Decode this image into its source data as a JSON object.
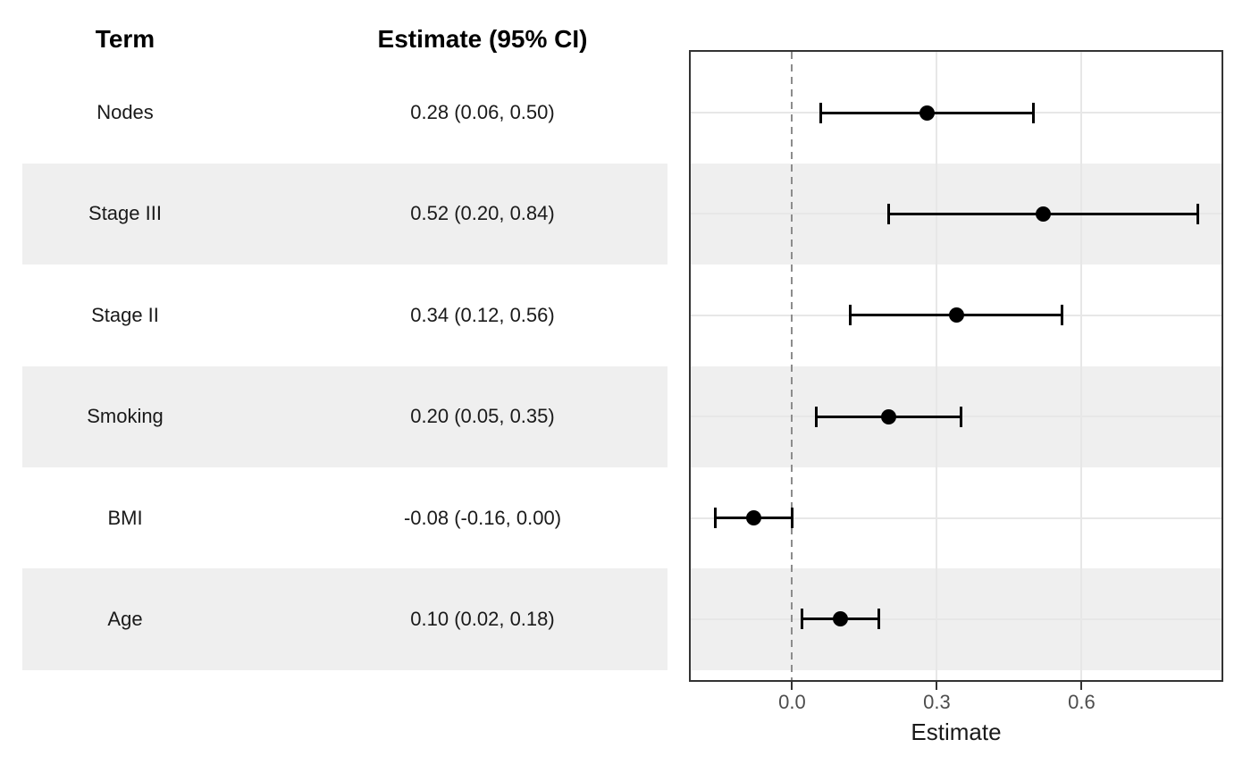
{
  "table": {
    "header_term": "Term",
    "header_estimate": "Estimate (95% CI)",
    "rows": [
      {
        "term": "Nodes",
        "estimate_label": "0.28 (0.06, 0.50)"
      },
      {
        "term": "Stage III",
        "estimate_label": "0.52 (0.20, 0.84)"
      },
      {
        "term": "Stage II",
        "estimate_label": "0.34 (0.12, 0.56)"
      },
      {
        "term": "Smoking",
        "estimate_label": "0.20 (0.05, 0.35)"
      },
      {
        "term": "BMI",
        "estimate_label": "-0.08 (-0.16, 0.00)"
      },
      {
        "term": "Age",
        "estimate_label": "0.10 (0.02, 0.18)"
      }
    ]
  },
  "chart_data": {
    "type": "scatter",
    "variant": "forest-plot",
    "title": "",
    "xlabel": "Estimate",
    "ylabel": "",
    "x_tick_labels": [
      "0.0",
      "0.3",
      "0.6"
    ],
    "x_tick_values": [
      0.0,
      0.3,
      0.6
    ],
    "xlim": [
      -0.21,
      0.89
    ],
    "reference_line_x": 0,
    "grid": "major",
    "legend": "none",
    "series": [
      {
        "name": "Nodes",
        "estimate": 0.28,
        "ci_low": 0.06,
        "ci_high": 0.5
      },
      {
        "name": "Stage III",
        "estimate": 0.52,
        "ci_low": 0.2,
        "ci_high": 0.84
      },
      {
        "name": "Stage II",
        "estimate": 0.34,
        "ci_low": 0.12,
        "ci_high": 0.56
      },
      {
        "name": "Smoking",
        "estimate": 0.2,
        "ci_low": 0.05,
        "ci_high": 0.35
      },
      {
        "name": "BMI",
        "estimate": -0.08,
        "ci_low": -0.16,
        "ci_high": 0.0
      },
      {
        "name": "Age",
        "estimate": 0.1,
        "ci_low": 0.02,
        "ci_high": 0.18
      }
    ],
    "striped_row_indices": [
      1,
      3,
      5
    ]
  },
  "colors": {
    "background": "#FFFFFF",
    "stripe": "#EFEFEF",
    "panel_border": "#333333",
    "grid": "#E7E7E7",
    "reference_line": "#8C8C8C",
    "marker": "#000000",
    "text": "#1A1A1A",
    "tick_label": "#4D4D4D",
    "tick_mark": "#333333"
  }
}
